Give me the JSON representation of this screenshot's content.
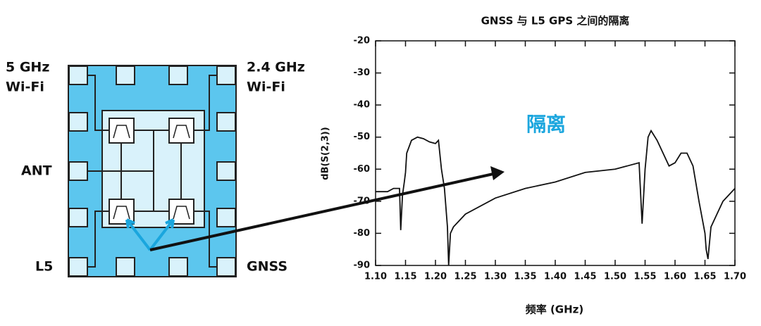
{
  "diagram": {
    "labels": [
      [
        "5 GHz",
        "Wi-Fi"
      ],
      [
        "2.4 GHz",
        "Wi-Fi"
      ],
      [
        "ANT"
      ],
      [
        "L5"
      ],
      [
        "GNSS"
      ]
    ]
  },
  "chart_data": {
    "type": "line",
    "title": "GNSS 与 L5 GPS 之间的隔离",
    "x_label": "频率 (GHz)",
    "y_label": "dB(S(2,3))",
    "annotation": "隔离",
    "x": [
      1.1,
      1.12,
      1.13,
      1.14,
      1.142,
      1.145,
      1.148,
      1.15,
      1.152,
      1.16,
      1.17,
      1.18,
      1.19,
      1.2,
      1.205,
      1.21,
      1.215,
      1.22,
      1.222,
      1.225,
      1.23,
      1.25,
      1.3,
      1.35,
      1.4,
      1.45,
      1.5,
      1.54,
      1.545,
      1.55,
      1.555,
      1.56,
      1.57,
      1.58,
      1.59,
      1.6,
      1.61,
      1.62,
      1.63,
      1.64,
      1.65,
      1.652,
      1.655,
      1.66,
      1.68,
      1.7
    ],
    "series": [
      {
        "name": "dB(S(2,3))",
        "color": "#111111",
        "values": [
          -67,
          -67,
          -66,
          -66,
          -79,
          -68,
          -64,
          -61,
          -55,
          -51,
          -50,
          -50.5,
          -51.5,
          -52,
          -51,
          -60,
          -66,
          -78,
          -90,
          -80,
          -78,
          -74,
          -69,
          -66,
          -64,
          -61,
          -60,
          -58,
          -77,
          -60,
          -50,
          -48,
          -51,
          -55,
          -59,
          -58,
          -55,
          -55,
          -59,
          -70,
          -80,
          -85,
          -88,
          -78,
          -70,
          -66
        ]
      }
    ],
    "xlim": [
      1.1,
      1.7
    ],
    "ylim": [
      -90,
      -20
    ],
    "xticks": [
      {
        "value": 1.1,
        "label": "1.10"
      },
      1.15,
      {
        "value": 1.2,
        "label": "1.20"
      },
      1.25,
      {
        "value": 1.3,
        "label": "1.30"
      },
      1.35,
      {
        "value": 1.4,
        "label": "1.40"
      },
      1.45,
      {
        "value": 1.5,
        "label": "1.50"
      },
      1.55,
      {
        "value": 1.6,
        "label": "1.60"
      },
      1.65,
      {
        "value": 1.7,
        "label": "1.70"
      }
    ],
    "yticks": [
      -20,
      -30,
      -40,
      -50,
      -60,
      -70,
      -80,
      -90
    ]
  }
}
